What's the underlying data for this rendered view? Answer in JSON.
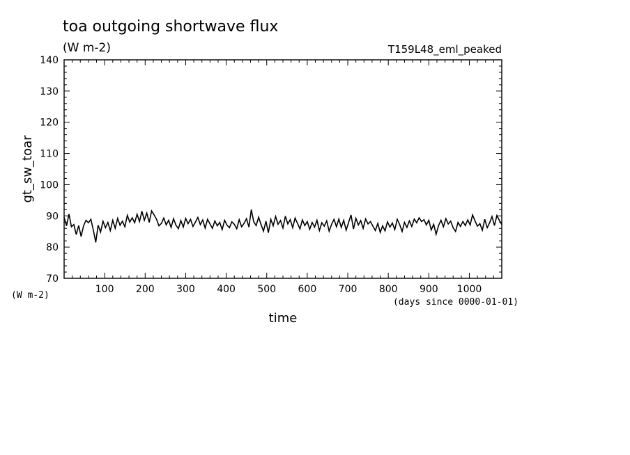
{
  "chart_data": {
    "type": "line",
    "title": "toa outgoing shortwave flux",
    "subtitle": "(W m-2)",
    "run_label": "T159L48_eml_peaked",
    "ylabel": "gt_sw_toar",
    "yunits": "(W m-2)",
    "xlabel": "time",
    "xunits": "(days since 0000-01-01)",
    "xlim": [
      0,
      1080
    ],
    "ylim": [
      70,
      140
    ],
    "x_ticks": [
      100,
      200,
      300,
      400,
      500,
      600,
      700,
      800,
      900,
      1000
    ],
    "y_ticks": [
      70,
      80,
      90,
      100,
      110,
      120,
      130,
      140
    ],
    "grid": false,
    "series": [
      {
        "x": [
          0,
          6,
          12,
          18,
          24,
          30,
          36,
          42,
          48,
          54,
          60,
          66,
          72,
          78,
          84,
          90,
          96,
          102,
          108,
          114,
          120,
          126,
          132,
          138,
          144,
          150,
          156,
          162,
          168,
          174,
          180,
          186,
          192,
          198,
          204,
          210,
          216,
          222,
          228,
          234,
          240,
          246,
          252,
          258,
          264,
          270,
          276,
          282,
          288,
          294,
          300,
          306,
          312,
          318,
          324,
          330,
          336,
          342,
          348,
          354,
          360,
          366,
          372,
          378,
          384,
          390,
          396,
          402,
          408,
          414,
          420,
          426,
          432,
          438,
          444,
          450,
          456,
          462,
          468,
          474,
          480,
          486,
          492,
          498,
          504,
          510,
          516,
          522,
          528,
          534,
          540,
          546,
          552,
          558,
          564,
          570,
          576,
          582,
          588,
          594,
          600,
          606,
          612,
          618,
          624,
          630,
          636,
          642,
          648,
          654,
          660,
          666,
          672,
          678,
          684,
          690,
          696,
          702,
          708,
          714,
          720,
          726,
          732,
          738,
          744,
          750,
          756,
          762,
          768,
          774,
          780,
          786,
          792,
          798,
          804,
          810,
          816,
          822,
          828,
          834,
          840,
          846,
          852,
          858,
          864,
          870,
          876,
          882,
          888,
          894,
          900,
          906,
          912,
          918,
          924,
          930,
          936,
          942,
          948,
          954,
          960,
          966,
          972,
          978,
          984,
          990,
          996,
          1002,
          1008,
          1014,
          1020,
          1026,
          1032,
          1038,
          1044,
          1050,
          1056,
          1062,
          1068,
          1074,
          1080
        ],
        "values": [
          89.5,
          86.8,
          90.6,
          86.5,
          87.2,
          84.0,
          86.9,
          83.4,
          86.8,
          88.6,
          87.8,
          88.9,
          85.5,
          81.5,
          87.0,
          84.8,
          88.3,
          86.2,
          87.9,
          85.3,
          88.6,
          86.0,
          89.2,
          87.0,
          88.3,
          86.5,
          90.2,
          88.0,
          89.4,
          87.8,
          90.5,
          88.2,
          91.5,
          88.6,
          90.9,
          87.9,
          91.6,
          90.3,
          88.9,
          86.8,
          87.6,
          89.3,
          87.1,
          88.6,
          86.3,
          89.1,
          87.0,
          85.9,
          88.5,
          86.4,
          89.2,
          87.5,
          88.9,
          86.6,
          88.0,
          89.5,
          87.2,
          88.7,
          86.1,
          88.9,
          87.4,
          86.0,
          88.4,
          86.8,
          87.9,
          85.6,
          88.6,
          87.0,
          86.2,
          88.1,
          87.3,
          85.9,
          88.8,
          86.5,
          87.6,
          89.1,
          86.4,
          92.0,
          88.1,
          86.9,
          89.6,
          87.2,
          85.1,
          88.3,
          84.6,
          88.9,
          86.8,
          89.8,
          87.3,
          88.5,
          86.1,
          89.9,
          87.4,
          88.8,
          86.2,
          89.3,
          87.6,
          85.8,
          88.7,
          86.9,
          88.2,
          85.7,
          87.9,
          86.4,
          88.6,
          85.3,
          87.8,
          86.7,
          88.4,
          85.1,
          87.3,
          88.9,
          86.5,
          89.0,
          86.3,
          88.6,
          85.4,
          87.9,
          90.3,
          85.8,
          89.2,
          87.1,
          88.5,
          86.0,
          89.0,
          87.4,
          88.2,
          86.7,
          85.3,
          87.6,
          84.7,
          86.8,
          85.2,
          88.1,
          86.4,
          87.7,
          85.6,
          88.9,
          87.2,
          85.0,
          87.9,
          86.3,
          88.4,
          86.6,
          89.0,
          87.8,
          89.4,
          88.2,
          88.8,
          87.1,
          88.6,
          85.5,
          87.3,
          84.1,
          86.9,
          88.6,
          86.5,
          89.1,
          87.4,
          88.3,
          86.2,
          85.0,
          87.9,
          86.6,
          88.2,
          86.9,
          88.7,
          87.1,
          90.3,
          88.4,
          86.7,
          87.5,
          85.4,
          88.9,
          86.2,
          87.8,
          89.8,
          86.9,
          90.1,
          88.6,
          87.2
        ]
      }
    ]
  }
}
